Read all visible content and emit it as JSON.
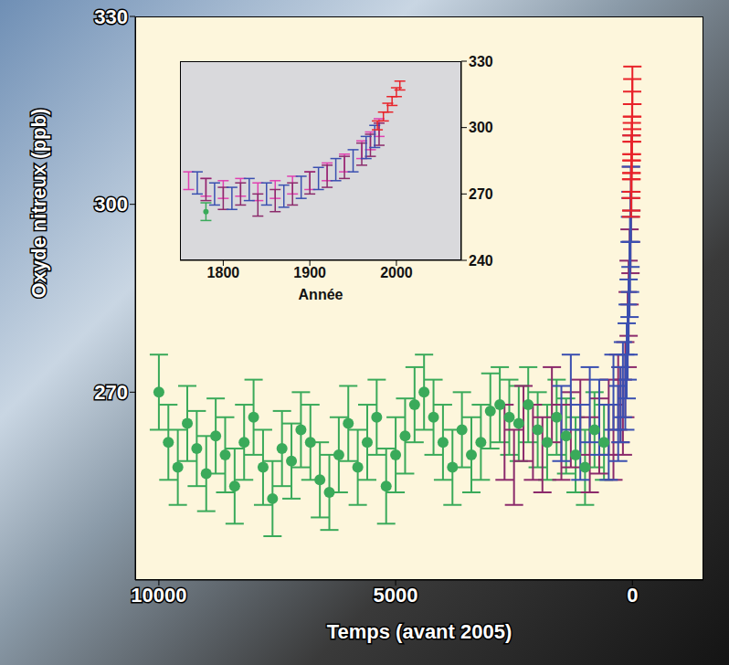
{
  "chart_data": [
    {
      "type": "scatter",
      "x_label": "Temps (avant 2005)",
      "y_label": "Oxyde nitreux (ppb)",
      "xlim": [
        10500,
        -1500
      ],
      "ylim": [
        240,
        330
      ],
      "xticks": [
        10000,
        5000,
        0
      ],
      "yticks": [
        270,
        300,
        330
      ],
      "series": [
        {
          "color": "#3aaa5a",
          "marker": "circle",
          "error": 6,
          "x": [
            10000,
            9800,
            9600,
            9400,
            9200,
            9000,
            8800,
            8600,
            8400,
            8200,
            8000,
            7800,
            7600,
            7400,
            7200,
            7000,
            6800,
            6600,
            6400,
            6200,
            6000,
            5800,
            5600,
            5400,
            5200,
            5000,
            4800,
            4600,
            4400,
            4200,
            4000,
            3800,
            3600,
            3400,
            3200,
            3000,
            2800,
            2600,
            2400,
            2200,
            2000,
            1800,
            1600,
            1400,
            1200,
            1000,
            800,
            600
          ],
          "values": [
            270,
            262,
            258,
            265,
            261,
            257,
            263,
            260,
            255,
            262,
            266,
            258,
            253,
            261,
            259,
            264,
            262,
            256,
            254,
            260,
            265,
            258,
            262,
            266,
            255,
            260,
            263,
            268,
            270,
            266,
            262,
            258,
            264,
            260,
            262,
            267,
            268,
            266,
            265,
            268,
            264,
            262,
            266,
            263,
            260,
            258,
            264,
            262
          ]
        },
        {
          "color": "#8b2a6b",
          "marker": "none",
          "error": 6,
          "x": [
            2700,
            2500,
            2300,
            2100,
            1900,
            1700,
            1500,
            1300,
            1100,
            900,
            700,
            500,
            400,
            300,
            250,
            200,
            150,
            100,
            80,
            60,
            40,
            30,
            20
          ],
          "values": [
            262,
            258,
            265,
            262,
            260,
            268,
            262,
            264,
            266,
            260,
            263,
            266,
            262,
            270,
            268,
            266,
            272,
            280,
            285,
            290,
            295,
            300,
            305
          ]
        },
        {
          "color": "#3a4fb0",
          "marker": "none",
          "error": 6,
          "x": [
            1500,
            1300,
            1100,
            900,
            700,
            500,
            400,
            300,
            250,
            200,
            150,
            120,
            100,
            80,
            60,
            50,
            40,
            30
          ],
          "values": [
            265,
            270,
            262,
            268,
            266,
            262,
            270,
            265,
            268,
            272,
            270,
            275,
            278,
            282,
            288,
            292,
            296,
            300
          ]
        },
        {
          "color": "#e8232a",
          "marker": "none",
          "error": 3,
          "x": [
            27,
            25,
            22,
            20,
            17,
            15,
            12,
            10,
            7,
            5,
            2,
            0
          ],
          "values": [
            301,
            302,
            304,
            305,
            307,
            308,
            310,
            311,
            313,
            315,
            317,
            319
          ]
        }
      ]
    },
    {
      "type": "scatter",
      "x_label": "Année",
      "xlim": [
        1750,
        2075
      ],
      "ylim": [
        240,
        330
      ],
      "xticks": [
        1800,
        1900,
        2000
      ],
      "yticks": [
        240,
        270,
        300,
        330
      ],
      "series": [
        {
          "color": "#e040b0",
          "marker": "none",
          "error": 4,
          "x": [
            1760,
            1780,
            1800,
            1820,
            1840,
            1860,
            1880,
            1900,
            1920,
            1940,
            1960,
            1970,
            1980
          ],
          "values": [
            276,
            273,
            272,
            273,
            271,
            272,
            274,
            276,
            280,
            284,
            290,
            294,
            300
          ]
        },
        {
          "color": "#8b2a6b",
          "marker": "none",
          "error": 5,
          "x": [
            1780,
            1800,
            1820,
            1840,
            1860,
            1880,
            1900,
            1920,
            1940,
            1960,
            1970,
            1980
          ],
          "values": [
            272,
            268,
            270,
            265,
            267,
            270,
            275,
            278,
            282,
            288,
            292,
            297
          ]
        },
        {
          "color": "#3a4fb0",
          "marker": "none",
          "error": 5,
          "x": [
            1770,
            1790,
            1810,
            1830,
            1850,
            1870,
            1890,
            1910,
            1930,
            1950,
            1965,
            1975
          ],
          "values": [
            275,
            270,
            268,
            272,
            270,
            269,
            273,
            277,
            281,
            285,
            291,
            296
          ]
        },
        {
          "color": "#3aaa5a",
          "marker": "circle",
          "error": 4,
          "x": [
            1780
          ],
          "values": [
            262
          ]
        },
        {
          "color": "#e8232a",
          "marker": "none",
          "error": 2,
          "x": [
            1978,
            1985,
            1990,
            1995,
            2000,
            2004
          ],
          "values": [
            301,
            305,
            309,
            312,
            316,
            319
          ]
        }
      ]
    }
  ]
}
